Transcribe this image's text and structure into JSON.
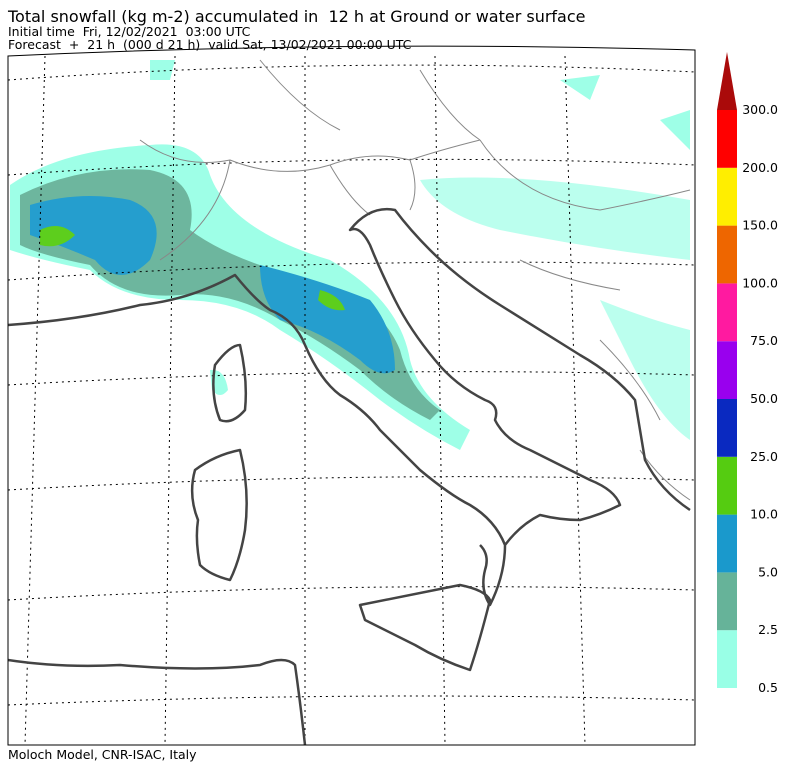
{
  "header": {
    "title": "Total snowfall (kg m-2) accumulated in  12 h at Ground or water surface",
    "initial_time": "Initial time  Fri, 12/02/2021  03:00 UTC",
    "forecast": "Forecast  +  21 h  (000 d 21 h)  valid Sat, 13/02/2021 00:00 UTC"
  },
  "colorbar": {
    "labels": [
      "0.5",
      "2.5",
      "5.0",
      "10.0",
      "25.0",
      "50.0",
      "75.0",
      "100.0",
      "150.0",
      "200.0",
      "300.0"
    ],
    "colors": [
      "#99ffe6",
      "#66b399",
      "#1a99cc",
      "#55cc11",
      "#0a29c0",
      "#9900ee",
      "#ff1aa0",
      "#ee6600",
      "#ffee00",
      "#ff0000"
    ],
    "extend_color": "#aa0a0a"
  },
  "footer": {
    "credit": "Moloch Model, CNR-ISAC, Italy"
  }
}
